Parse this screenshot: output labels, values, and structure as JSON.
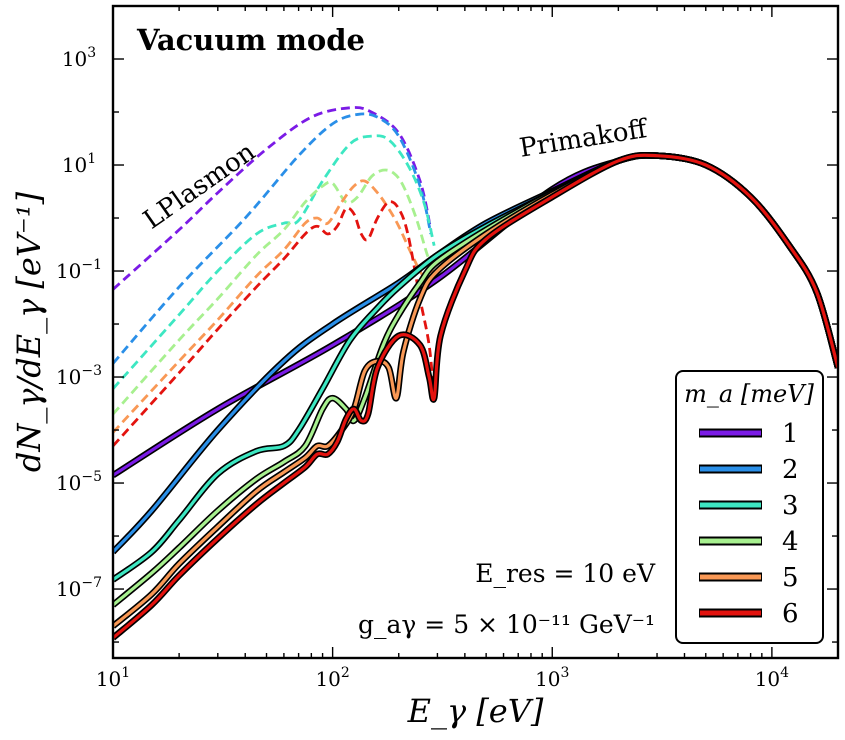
{
  "chart_data": {
    "type": "line",
    "title": "Vacuum mode",
    "xlabel": "E_γ [eV]",
    "ylabel": "dN_γ/dE_γ [eV⁻¹]",
    "x_scale": "log",
    "y_scale": "log",
    "xlim": [
      10,
      20000
    ],
    "ylim": [
      5e-09,
      10000
    ],
    "x_ticks": [
      {
        "value": 10,
        "base": "10",
        "exp": "1"
      },
      {
        "value": 100,
        "base": "10",
        "exp": "2"
      },
      {
        "value": 1000,
        "base": "10",
        "exp": "3"
      },
      {
        "value": 10000,
        "base": "10",
        "exp": "4"
      }
    ],
    "y_ticks": [
      {
        "value": 1e-07,
        "base": "10",
        "exp": "−7"
      },
      {
        "value": 1e-05,
        "base": "10",
        "exp": "−5"
      },
      {
        "value": 0.001,
        "base": "10",
        "exp": "−3"
      },
      {
        "value": 0.1,
        "base": "10",
        "exp": "−1"
      },
      {
        "value": 10,
        "base": "10",
        "exp": "1"
      },
      {
        "value": 1000,
        "base": "10",
        "exp": "3"
      }
    ],
    "annotations": [
      {
        "text": "LPlasmon",
        "x": 26,
        "y": 3
      },
      {
        "text": "Primakoff",
        "x": 1400,
        "y": 22
      },
      {
        "text": "E_res = 10 eV",
        "x": 3000,
        "y": 3e-07
      },
      {
        "text": "g_aγ = 5 × 10⁻¹¹ GeV⁻¹",
        "x": 3000,
        "y": 4e-08
      }
    ],
    "legend": {
      "title": "m_a [meV]",
      "location": "lower-right",
      "entries": [
        "1",
        "2",
        "3",
        "4",
        "5",
        "6"
      ]
    },
    "series": [
      {
        "name": "1",
        "color": "#7b1be6",
        "primakoff": {
          "x": [
            10,
            30,
            100,
            300,
            1000,
            2000,
            3000,
            5000,
            8000,
            12000,
            16000,
            20000
          ],
          "y": [
            1.4e-05,
            0.00025,
            0.004,
            0.07,
            3.5,
            12,
            15,
            10,
            2.5,
            0.3,
            0.04,
            0.0015
          ]
        },
        "lplasmon": {
          "x": [
            10,
            20,
            30,
            50,
            80,
            120,
            150,
            200,
            250,
            280
          ],
          "y": [
            0.045,
            0.6,
            3,
            20,
            80,
            120,
            100,
            40,
            5,
            0.6
          ]
        }
      },
      {
        "name": "2",
        "color": "#2a8fe8",
        "primakoff": {
          "x": [
            10,
            15,
            30,
            60,
            100,
            200,
            300,
            500,
            1000,
            2000,
            3000,
            5000,
            8000,
            12000,
            16000,
            20000
          ],
          "y": [
            5e-07,
            3e-06,
            0.0001,
            0.002,
            0.01,
            0.06,
            0.2,
            0.8,
            3.2,
            12,
            15,
            10,
            2.5,
            0.3,
            0.04,
            0.0015
          ]
        },
        "lplasmon": {
          "x": [
            10,
            20,
            40,
            70,
            100,
            130,
            160,
            200,
            250,
            280
          ],
          "y": [
            0.0018,
            0.05,
            1,
            15,
            60,
            90,
            80,
            35,
            4,
            0.5
          ]
        }
      },
      {
        "name": "3",
        "color": "#3de7c2",
        "primakoff": {
          "x": [
            10,
            15,
            20,
            30,
            45,
            60,
            70,
            90,
            120,
            160,
            200,
            300,
            500,
            1000,
            2000,
            3000,
            5000,
            8000,
            12000,
            16000,
            20000
          ],
          "y": [
            1.5e-07,
            5e-07,
            2e-06,
            1.5e-05,
            4e-05,
            5e-05,
            0.0001,
            0.0006,
            0.005,
            0.02,
            0.05,
            0.2,
            0.7,
            3,
            12,
            15,
            10,
            2.5,
            0.3,
            0.04,
            0.0015
          ]
        },
        "lplasmon": {
          "x": [
            10,
            20,
            30,
            45,
            60,
            70,
            90,
            120,
            150,
            180,
            220,
            260,
            290
          ],
          "y": [
            0.0006,
            0.015,
            0.1,
            0.5,
            0.8,
            0.9,
            5,
            25,
            35,
            30,
            10,
            2,
            0.3
          ]
        }
      },
      {
        "name": "4",
        "color": "#a7f08f",
        "primakoff": {
          "x": [
            10,
            15,
            20,
            30,
            45,
            60,
            75,
            90,
            100,
            115,
            125,
            140,
            170,
            200,
            250,
            300,
            500,
            1000,
            2000,
            3000,
            5000,
            8000,
            12000,
            16000,
            20000
          ],
          "y": [
            5e-08,
            2e-07,
            6e-07,
            3e-06,
            1.2e-05,
            2.5e-05,
            5e-05,
            0.00025,
            0.0004,
            0.00025,
            0.00015,
            0.0004,
            0.004,
            0.015,
            0.06,
            0.15,
            0.6,
            3,
            12,
            15,
            10,
            2.5,
            0.3,
            0.04,
            0.0015
          ]
        },
        "lplasmon": {
          "x": [
            10,
            20,
            30,
            45,
            60,
            75,
            90,
            100,
            115,
            130,
            150,
            170,
            190,
            210,
            240,
            270,
            290
          ],
          "y": [
            0.0002,
            0.005,
            0.03,
            0.2,
            0.6,
            2,
            4,
            4.5,
            2,
            2.5,
            6,
            8,
            7,
            4,
            1,
            0.2,
            0.1
          ]
        }
      },
      {
        "name": "5",
        "color": "#f99855",
        "primakoff": {
          "x": [
            10,
            15,
            20,
            30,
            45,
            60,
            75,
            85,
            95,
            110,
            125,
            140,
            160,
            180,
            195,
            210,
            250,
            300,
            500,
            1000,
            2000,
            3000,
            5000,
            8000,
            12000,
            16000,
            20000
          ],
          "y": [
            2e-08,
            8e-08,
            3e-07,
            1.5e-06,
            7e-06,
            1.6e-05,
            3e-05,
            5e-05,
            5e-05,
            0.0001,
            0.00025,
            0.0013,
            0.002,
            0.0015,
            0.0004,
            0.003,
            0.03,
            0.1,
            0.5,
            2.8,
            12,
            15,
            10,
            2.5,
            0.3,
            0.04,
            0.0015
          ]
        },
        "lplasmon": {
          "x": [
            10,
            20,
            30,
            45,
            60,
            75,
            85,
            95,
            110,
            125,
            140,
            160,
            180,
            200,
            230,
            260,
            290
          ],
          "y": [
            9e-05,
            0.002,
            0.012,
            0.08,
            0.25,
            0.8,
            1,
            0.8,
            2,
            4,
            5,
            3,
            1.5,
            0.7,
            0.2,
            0.08,
            0.1
          ]
        }
      },
      {
        "name": "6",
        "color": "#e3130f",
        "primakoff": {
          "x": [
            10,
            15,
            20,
            30,
            45,
            60,
            75,
            85,
            95,
            105,
            115,
            125,
            135,
            145,
            160,
            200,
            250,
            275,
            290,
            310,
            400,
            500,
            1000,
            2000,
            3000,
            5000,
            8000,
            12000,
            16000,
            20000
          ],
          "y": [
            1.2e-08,
            5e-08,
            1.8e-07,
            9e-07,
            4e-06,
            1e-05,
            2e-05,
            3.5e-05,
            3.5e-05,
            6e-05,
            0.00016,
            0.00025,
            0.00015,
            0.0002,
            0.0015,
            0.006,
            0.004,
            0.001,
            0.0004,
            0.006,
            0.1,
            0.4,
            2.5,
            12,
            15,
            10,
            2.5,
            0.3,
            0.04,
            0.0015
          ]
        },
        "lplasmon": {
          "x": [
            10,
            20,
            30,
            45,
            60,
            75,
            85,
            95,
            105,
            115,
            125,
            135,
            145,
            160,
            180,
            200,
            220,
            250,
            275,
            290
          ],
          "y": [
            5e-05,
            0.0012,
            0.008,
            0.05,
            0.17,
            0.5,
            0.7,
            0.5,
            0.7,
            1.5,
            1.2,
            0.5,
            0.4,
            1,
            2,
            1.5,
            0.5,
            0.03,
            0.004,
            0.0004
          ]
        }
      }
    ]
  }
}
